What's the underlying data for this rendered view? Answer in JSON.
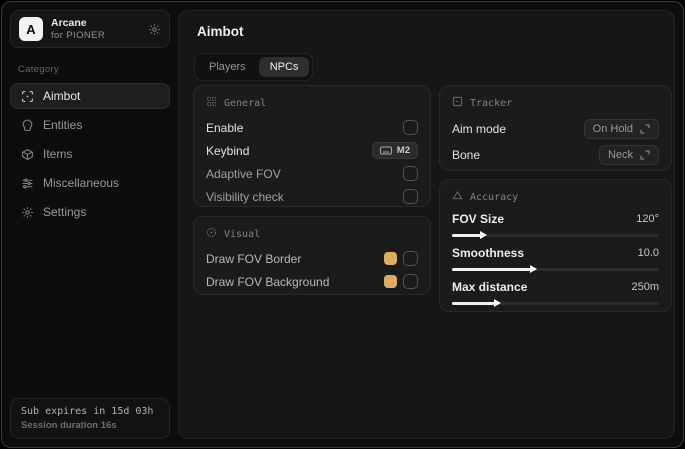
{
  "colors": {
    "accent_swatch": "#ddab63"
  },
  "sidebar": {
    "brand": {
      "initial": "A",
      "name": "Arcane",
      "subtitle": "for PIONER"
    },
    "category_label": "Category",
    "items": [
      {
        "label": "Aimbot",
        "icon": "crosshair-scan-icon",
        "active": true
      },
      {
        "label": "Entities",
        "icon": "skull-icon",
        "active": false
      },
      {
        "label": "Items",
        "icon": "cube-icon",
        "active": false
      },
      {
        "label": "Miscellaneous",
        "icon": "sliders-icon",
        "active": false
      },
      {
        "label": "Settings",
        "icon": "gear-icon",
        "active": false
      }
    ],
    "footer": {
      "expiry": "Sub expires in 15d 03h",
      "session": "Session duration 16s"
    }
  },
  "main": {
    "title": "Aimbot",
    "tabs": [
      {
        "label": "Players",
        "active": false
      },
      {
        "label": "NPCs",
        "active": true
      }
    ],
    "panels": {
      "general": {
        "title": "General",
        "icon": "grid-icon",
        "rows": [
          {
            "label": "Enable",
            "control": "checkbox",
            "checked": false
          },
          {
            "label": "Keybind",
            "control": "keybind",
            "key": "M2"
          },
          {
            "label": "Adaptive FOV",
            "control": "checkbox",
            "checked": false
          },
          {
            "label": "Visibility check",
            "control": "checkbox",
            "checked": false
          }
        ]
      },
      "visual": {
        "title": "Visual",
        "icon": "eye-icon",
        "rows": [
          {
            "label": "Draw FOV Border",
            "control": "color-checkbox",
            "color": "#ddab63",
            "checked": false
          },
          {
            "label": "Draw FOV Background",
            "control": "color-checkbox",
            "color": "#ddab63",
            "checked": false
          }
        ]
      },
      "tracker": {
        "title": "Tracker",
        "icon": "scan-frame-icon",
        "rows": [
          {
            "label": "Aim mode",
            "value": "On Hold"
          },
          {
            "label": "Bone",
            "value": "Neck"
          }
        ]
      },
      "accuracy": {
        "title": "Accuracy",
        "icon": "triangle-icon",
        "sliders": [
          {
            "label": "FOV Size",
            "value": "120°",
            "percent": 14
          },
          {
            "label": "Smoothness",
            "value": "10.0",
            "percent": 38
          },
          {
            "label": "Max distance",
            "value": "250m",
            "percent": 21
          }
        ]
      }
    }
  }
}
